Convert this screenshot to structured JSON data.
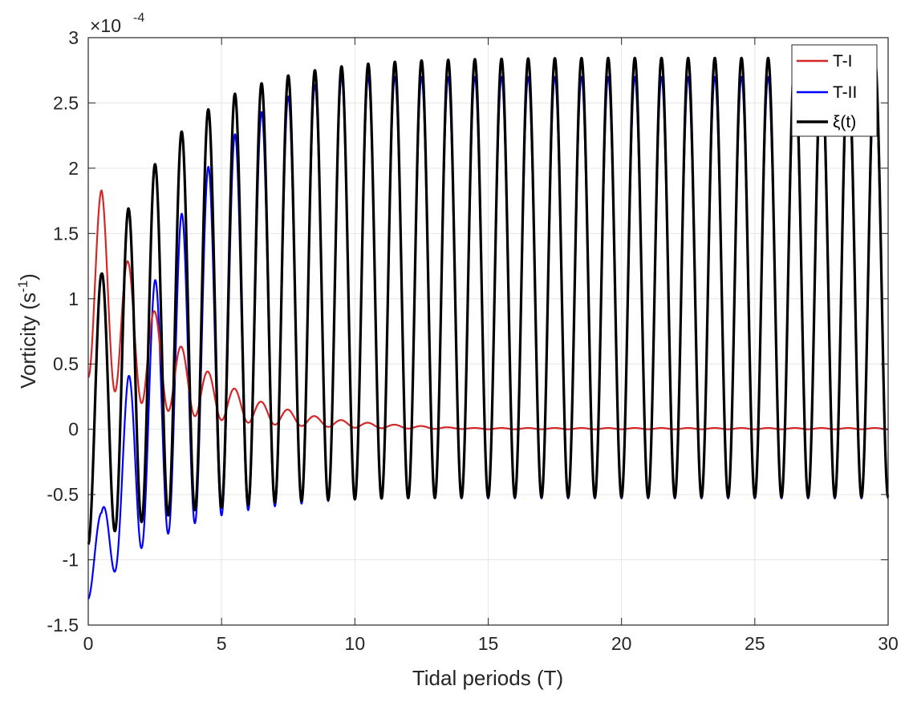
{
  "chart_data": {
    "type": "line",
    "xlabel": "Tidal periods (T)",
    "ylabel": "Vorticity (s",
    "ylabel_sup": "-1",
    "ylabel_tail": ")",
    "exponent_prefix": "×10",
    "exponent_power": "-4",
    "xlim": [
      0,
      30
    ],
    "ylim": [
      -1.5,
      3
    ],
    "xticks": [
      0,
      5,
      10,
      15,
      20,
      25,
      30
    ],
    "xtick_labels": [
      "0",
      "5",
      "10",
      "15",
      "20",
      "25",
      "30"
    ],
    "yticks": [
      -1.5,
      -1,
      -0.5,
      0,
      0.5,
      1,
      1.5,
      2,
      2.5,
      3
    ],
    "ytick_labels": [
      "-1.5",
      "-1",
      "-0.5",
      "0",
      "0.5",
      "1",
      "1.5",
      "2",
      "2.5",
      "3"
    ],
    "grid": true,
    "legend_position": "top-right",
    "series": [
      {
        "name": "T-I",
        "color": "#d62728",
        "peaks_x": [
          0.5,
          1.5,
          2.5,
          3.5,
          4.5,
          5.5,
          6.5,
          7.5,
          8.5,
          9.5,
          10.5,
          11.5,
          12.5,
          13.5,
          14.5
        ],
        "peaks_y": [
          1.83,
          1.28,
          0.9,
          0.63,
          0.44,
          0.31,
          0.21,
          0.15,
          0.1,
          0.07,
          0.05,
          0.035,
          0.025,
          0.015,
          0.01
        ],
        "troughs_x": [
          0,
          1,
          2,
          3,
          4,
          5,
          6,
          7,
          8,
          9,
          10,
          11,
          12,
          13,
          14,
          15
        ],
        "troughs_y": [
          0.4,
          0.29,
          0.2,
          0.14,
          0.1,
          0.07,
          0.05,
          0.035,
          0.025,
          0.018,
          0.012,
          0.008,
          0.005,
          0.003,
          0.002,
          0.0
        ]
      },
      {
        "name": "T-II",
        "color": "#0000ff",
        "peaks_x": [
          0.5,
          1.5,
          2.5,
          3.5,
          4.5,
          5.5,
          6.5,
          7.5,
          8.5,
          9.5
        ],
        "peaks_y": [
          -0.64,
          0.4,
          1.14,
          1.65,
          2.01,
          2.26,
          2.43,
          2.55,
          2.64,
          2.7
        ],
        "troughs_x": [
          0,
          1,
          2,
          3,
          4,
          5,
          6,
          7,
          8,
          9,
          10,
          11
        ],
        "troughs_y": [
          -1.3,
          -1.09,
          -0.91,
          -0.8,
          -0.72,
          -0.66,
          -0.62,
          -0.59,
          -0.57,
          -0.55,
          -0.54,
          -0.53
        ]
      },
      {
        "name": "ξ(t)",
        "color": "#000000",
        "amplitude_end": 1.68,
        "mean_end": 1.16,
        "initial_value": -0.88,
        "peaks_x": [
          0.5,
          1.5,
          2.5,
          3.5,
          4.5,
          5.5,
          6.5,
          7.5,
          8.5,
          9.5,
          10.5,
          11.5,
          12.5,
          13.5,
          14.5,
          15.5,
          16.5,
          17.5,
          18.5,
          19.5,
          20.5,
          21.5,
          22.5,
          23.5,
          24.5,
          25.5,
          26.5,
          27.5,
          28.5,
          29.5
        ],
        "peaks_y": [
          1.19,
          1.69,
          2.03,
          2.28,
          2.45,
          2.57,
          2.65,
          2.71,
          2.75,
          2.78,
          2.8,
          2.815,
          2.825,
          2.83,
          2.835,
          2.838,
          2.84,
          2.842,
          2.843,
          2.844,
          2.844,
          2.844,
          2.844,
          2.844,
          2.844,
          2.844,
          2.844,
          2.844,
          2.844,
          2.844
        ],
        "troughs_x": [
          0,
          1,
          2,
          3,
          4,
          5,
          6,
          7,
          8,
          9,
          10,
          11,
          12,
          13,
          14,
          15,
          16,
          17,
          18,
          19,
          20,
          21,
          22,
          23,
          24,
          25,
          26,
          27,
          28,
          29,
          30
        ],
        "troughs_y": [
          -0.88,
          -0.78,
          -0.71,
          -0.66,
          -0.62,
          -0.6,
          -0.58,
          -0.56,
          -0.55,
          -0.54,
          -0.535,
          -0.53,
          -0.527,
          -0.525,
          -0.523,
          -0.522,
          -0.521,
          -0.52,
          -0.52,
          -0.52,
          -0.52,
          -0.52,
          -0.52,
          -0.52,
          -0.52,
          -0.52,
          -0.52,
          -0.52,
          -0.52,
          -0.52,
          -0.52
        ]
      }
    ]
  },
  "colors": {
    "axis": "#262626",
    "grid": "#e6e6e6",
    "background": "#ffffff"
  }
}
